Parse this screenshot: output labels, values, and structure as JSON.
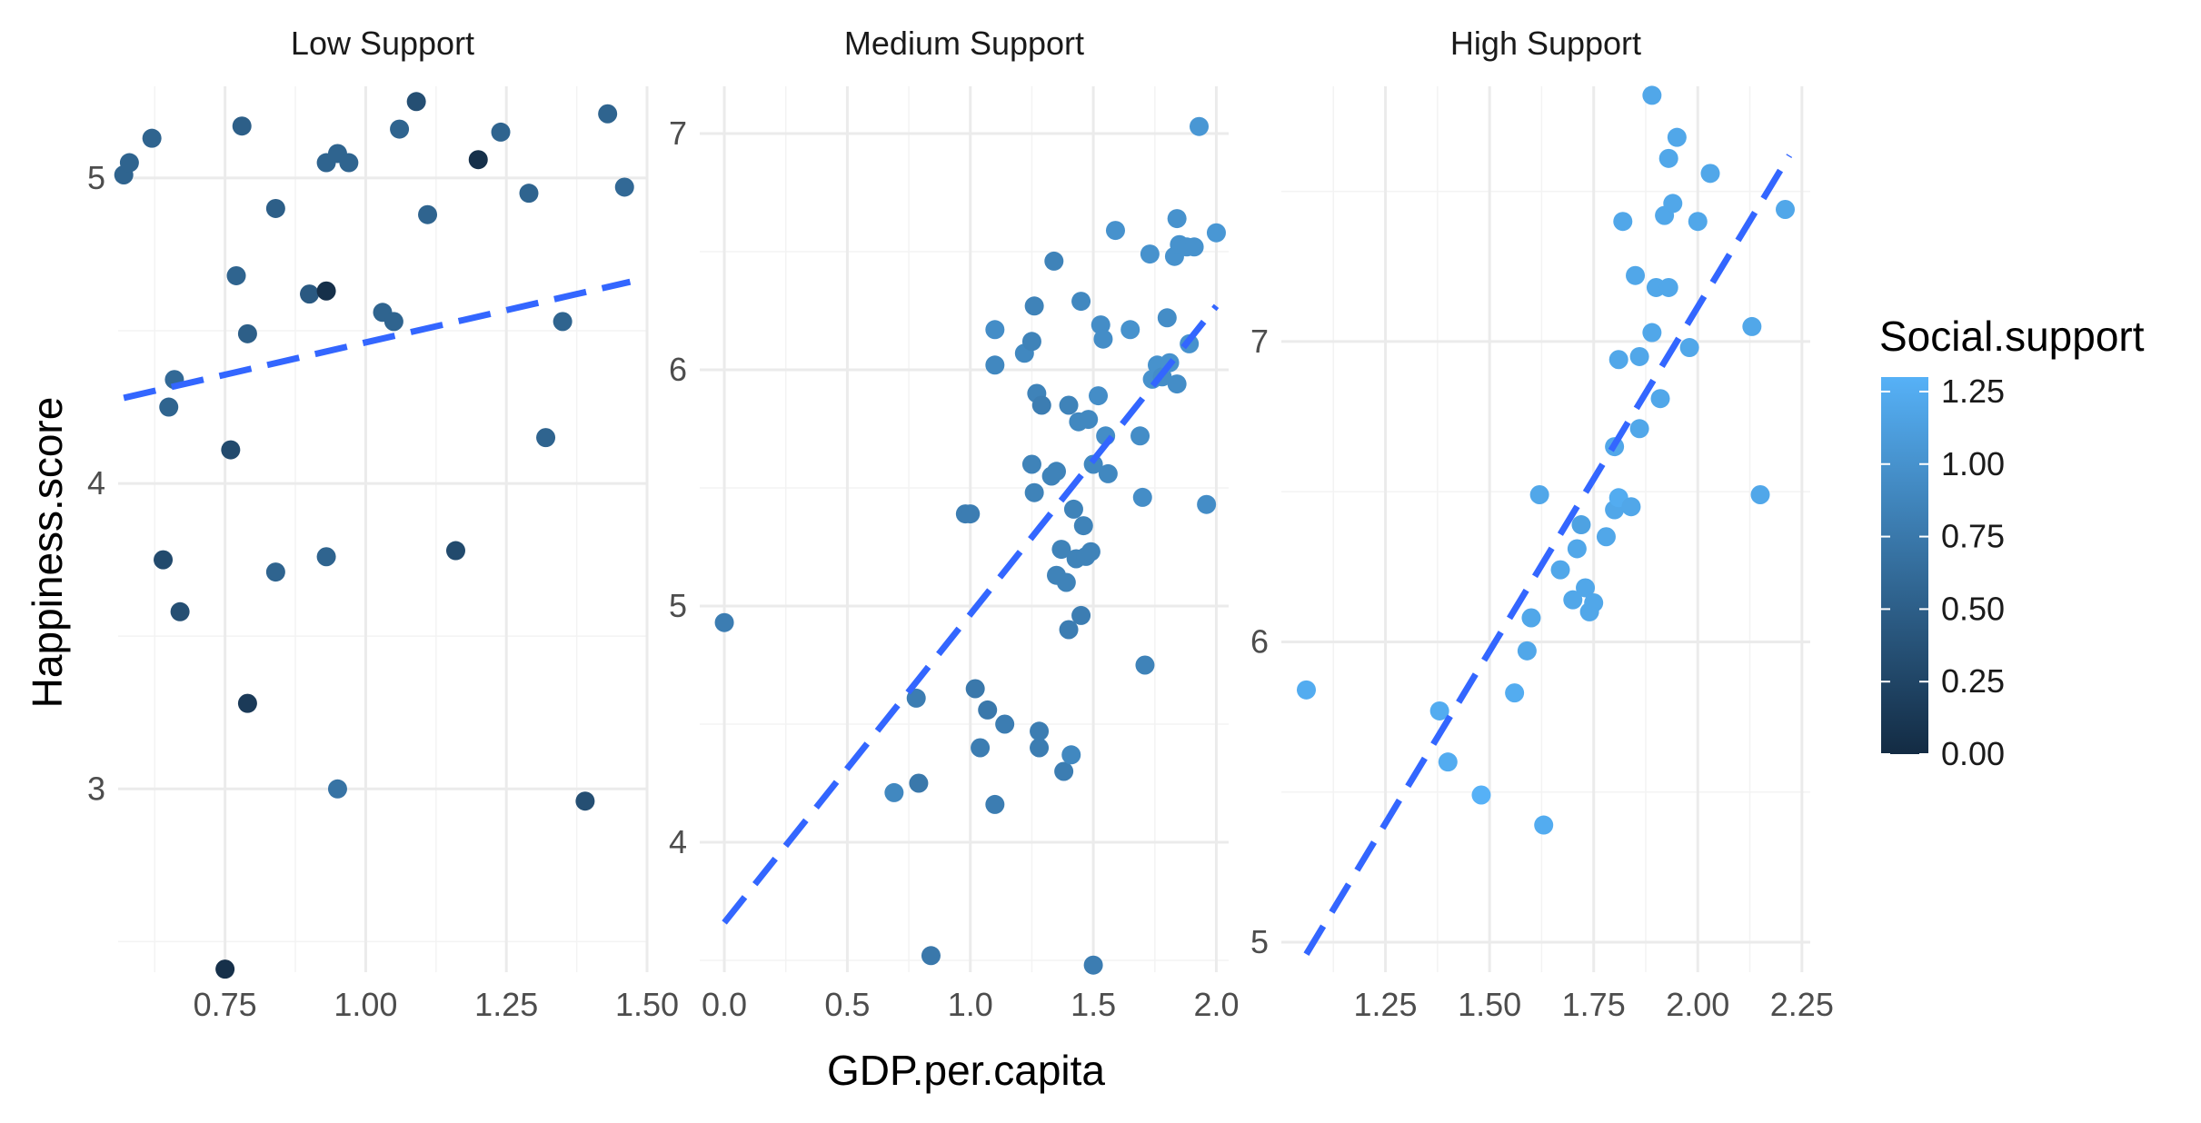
{
  "chart_data": {
    "type": "scatter",
    "xlabel": "GDP.per.capita",
    "ylabel": "Happiness.score",
    "legend": {
      "title": "Social.support",
      "ticks": [
        "1.25",
        "1.00",
        "0.75",
        "0.50",
        "0.25",
        "0.00"
      ],
      "range": [
        0,
        1.3
      ],
      "color_low": "#132b43",
      "color_high": "#56b1f7",
      "placement": "right"
    },
    "trend_color": "#3366ff",
    "panels": [
      {
        "title": "Low Support",
        "xlim": [
          0.56,
          1.5
        ],
        "ylim": [
          2.4,
          5.3
        ],
        "x_ticks": [
          0.75,
          1.0,
          1.25,
          1.5
        ],
        "x_tick_labels": [
          "0.75",
          "1.00",
          "1.25",
          "1.50"
        ],
        "y_ticks": [
          3,
          4,
          5
        ],
        "y_tick_labels": [
          "3",
          "4",
          "5"
        ],
        "trend": {
          "x": [
            0.57,
            1.47
          ],
          "y": [
            4.28,
            4.66
          ]
        },
        "points": [
          {
            "x": 0.57,
            "y": 5.01,
            "s": 0.55
          },
          {
            "x": 0.58,
            "y": 5.05,
            "s": 0.55
          },
          {
            "x": 0.62,
            "y": 5.13,
            "s": 0.55
          },
          {
            "x": 0.65,
            "y": 4.25,
            "s": 0.55
          },
          {
            "x": 0.66,
            "y": 4.34,
            "s": 0.6
          },
          {
            "x": 0.64,
            "y": 3.75,
            "s": 0.3
          },
          {
            "x": 0.67,
            "y": 3.58,
            "s": 0.35
          },
          {
            "x": 0.75,
            "y": 2.41,
            "s": 0.05
          },
          {
            "x": 0.76,
            "y": 4.11,
            "s": 0.3
          },
          {
            "x": 0.77,
            "y": 4.68,
            "s": 0.55
          },
          {
            "x": 0.78,
            "y": 5.17,
            "s": 0.5
          },
          {
            "x": 0.79,
            "y": 4.49,
            "s": 0.5
          },
          {
            "x": 0.79,
            "y": 3.28,
            "s": 0.15
          },
          {
            "x": 0.84,
            "y": 4.9,
            "s": 0.5
          },
          {
            "x": 0.84,
            "y": 3.71,
            "s": 0.55
          },
          {
            "x": 0.9,
            "y": 4.62,
            "s": 0.45
          },
          {
            "x": 0.93,
            "y": 4.63,
            "s": 0.05
          },
          {
            "x": 0.93,
            "y": 5.05,
            "s": 0.55
          },
          {
            "x": 0.95,
            "y": 5.08,
            "s": 0.55
          },
          {
            "x": 0.97,
            "y": 5.05,
            "s": 0.55
          },
          {
            "x": 0.93,
            "y": 3.76,
            "s": 0.55
          },
          {
            "x": 0.95,
            "y": 3.0,
            "s": 0.7
          },
          {
            "x": 1.03,
            "y": 4.56,
            "s": 0.55
          },
          {
            "x": 1.05,
            "y": 4.53,
            "s": 0.55
          },
          {
            "x": 1.06,
            "y": 5.16,
            "s": 0.55
          },
          {
            "x": 1.09,
            "y": 5.25,
            "s": 0.35
          },
          {
            "x": 1.11,
            "y": 4.88,
            "s": 0.55
          },
          {
            "x": 1.16,
            "y": 3.78,
            "s": 0.3
          },
          {
            "x": 1.2,
            "y": 5.06,
            "s": 0.05
          },
          {
            "x": 1.24,
            "y": 5.15,
            "s": 0.55
          },
          {
            "x": 1.29,
            "y": 4.95,
            "s": 0.55
          },
          {
            "x": 1.32,
            "y": 4.15,
            "s": 0.55
          },
          {
            "x": 1.35,
            "y": 4.53,
            "s": 0.55
          },
          {
            "x": 1.39,
            "y": 2.96,
            "s": 0.35
          },
          {
            "x": 1.43,
            "y": 5.21,
            "s": 0.55
          },
          {
            "x": 1.46,
            "y": 4.97,
            "s": 0.6
          }
        ]
      },
      {
        "title": "Medium Support",
        "xlim": [
          -0.1,
          2.05
        ],
        "ylim": [
          3.45,
          7.2
        ],
        "x_ticks": [
          0.0,
          0.5,
          1.0,
          1.5,
          2.0
        ],
        "x_tick_labels": [
          "0.0",
          "0.5",
          "1.0",
          "1.5",
          "2.0"
        ],
        "y_ticks": [
          4,
          5,
          6,
          7
        ],
        "y_tick_labels": [
          "4",
          "5",
          "6",
          "7"
        ],
        "trend": {
          "x": [
            0.0,
            2.0
          ],
          "y": [
            3.66,
            6.27
          ]
        },
        "points": [
          {
            "x": 0.0,
            "y": 4.93,
            "s": 0.8
          },
          {
            "x": 0.69,
            "y": 4.21,
            "s": 0.9
          },
          {
            "x": 0.78,
            "y": 4.61,
            "s": 0.8
          },
          {
            "x": 0.79,
            "y": 4.25,
            "s": 0.75
          },
          {
            "x": 0.84,
            "y": 3.52,
            "s": 0.75
          },
          {
            "x": 0.98,
            "y": 5.39,
            "s": 0.8
          },
          {
            "x": 1.0,
            "y": 5.39,
            "s": 0.8
          },
          {
            "x": 1.02,
            "y": 4.65,
            "s": 0.75
          },
          {
            "x": 1.04,
            "y": 4.4,
            "s": 0.8
          },
          {
            "x": 1.07,
            "y": 4.56,
            "s": 0.75
          },
          {
            "x": 1.1,
            "y": 4.16,
            "s": 0.8
          },
          {
            "x": 1.1,
            "y": 6.02,
            "s": 0.9
          },
          {
            "x": 1.1,
            "y": 6.17,
            "s": 0.95
          },
          {
            "x": 1.14,
            "y": 4.5,
            "s": 0.8
          },
          {
            "x": 1.22,
            "y": 6.07,
            "s": 0.9
          },
          {
            "x": 1.25,
            "y": 6.12,
            "s": 0.85
          },
          {
            "x": 1.26,
            "y": 6.27,
            "s": 0.85
          },
          {
            "x": 1.25,
            "y": 5.6,
            "s": 0.85
          },
          {
            "x": 1.26,
            "y": 5.48,
            "s": 0.85
          },
          {
            "x": 1.27,
            "y": 5.9,
            "s": 0.85
          },
          {
            "x": 1.29,
            "y": 5.85,
            "s": 0.8
          },
          {
            "x": 1.28,
            "y": 4.4,
            "s": 0.8
          },
          {
            "x": 1.28,
            "y": 4.47,
            "s": 0.8
          },
          {
            "x": 1.33,
            "y": 5.55,
            "s": 0.85
          },
          {
            "x": 1.34,
            "y": 6.46,
            "s": 0.85
          },
          {
            "x": 1.35,
            "y": 5.57,
            "s": 0.85
          },
          {
            "x": 1.35,
            "y": 5.13,
            "s": 0.85
          },
          {
            "x": 1.37,
            "y": 5.24,
            "s": 0.85
          },
          {
            "x": 1.38,
            "y": 4.3,
            "s": 0.8
          },
          {
            "x": 1.39,
            "y": 5.1,
            "s": 0.85
          },
          {
            "x": 1.4,
            "y": 5.85,
            "s": 0.85
          },
          {
            "x": 1.4,
            "y": 4.9,
            "s": 0.8
          },
          {
            "x": 1.41,
            "y": 4.37,
            "s": 0.9
          },
          {
            "x": 1.42,
            "y": 5.41,
            "s": 0.85
          },
          {
            "x": 1.43,
            "y": 5.2,
            "s": 0.85
          },
          {
            "x": 1.44,
            "y": 5.78,
            "s": 0.9
          },
          {
            "x": 1.45,
            "y": 4.96,
            "s": 0.8
          },
          {
            "x": 1.45,
            "y": 6.29,
            "s": 0.9
          },
          {
            "x": 1.46,
            "y": 5.34,
            "s": 0.85
          },
          {
            "x": 1.47,
            "y": 5.21,
            "s": 0.85
          },
          {
            "x": 1.48,
            "y": 5.79,
            "s": 0.9
          },
          {
            "x": 1.49,
            "y": 5.23,
            "s": 0.85
          },
          {
            "x": 1.5,
            "y": 3.48,
            "s": 0.8
          },
          {
            "x": 1.5,
            "y": 5.6,
            "s": 0.9
          },
          {
            "x": 1.52,
            "y": 5.89,
            "s": 0.95
          },
          {
            "x": 1.53,
            "y": 6.19,
            "s": 0.95
          },
          {
            "x": 1.54,
            "y": 6.13,
            "s": 0.95
          },
          {
            "x": 1.55,
            "y": 5.72,
            "s": 0.95
          },
          {
            "x": 1.56,
            "y": 5.56,
            "s": 0.9
          },
          {
            "x": 1.59,
            "y": 6.59,
            "s": 1.0
          },
          {
            "x": 1.65,
            "y": 6.17,
            "s": 1.0
          },
          {
            "x": 1.69,
            "y": 5.72,
            "s": 0.95
          },
          {
            "x": 1.7,
            "y": 5.46,
            "s": 0.95
          },
          {
            "x": 1.71,
            "y": 4.75,
            "s": 0.85
          },
          {
            "x": 1.73,
            "y": 6.49,
            "s": 1.0
          },
          {
            "x": 1.74,
            "y": 5.96,
            "s": 1.0
          },
          {
            "x": 1.76,
            "y": 6.02,
            "s": 1.0
          },
          {
            "x": 1.78,
            "y": 5.97,
            "s": 0.95
          },
          {
            "x": 1.8,
            "y": 6.22,
            "s": 0.95
          },
          {
            "x": 1.81,
            "y": 6.03,
            "s": 1.0
          },
          {
            "x": 1.83,
            "y": 6.48,
            "s": 1.0
          },
          {
            "x": 1.84,
            "y": 6.64,
            "s": 1.0
          },
          {
            "x": 1.85,
            "y": 6.53,
            "s": 1.0
          },
          {
            "x": 1.84,
            "y": 5.94,
            "s": 0.95
          },
          {
            "x": 1.88,
            "y": 6.52,
            "s": 1.0
          },
          {
            "x": 1.89,
            "y": 6.11,
            "s": 1.0
          },
          {
            "x": 1.91,
            "y": 6.52,
            "s": 1.0
          },
          {
            "x": 1.93,
            "y": 7.03,
            "s": 1.05
          },
          {
            "x": 1.96,
            "y": 5.43,
            "s": 0.95
          },
          {
            "x": 2.0,
            "y": 6.58,
            "s": 1.05
          }
        ]
      },
      {
        "title": "High Support",
        "xlim": [
          1.0,
          2.27
        ],
        "ylim": [
          4.9,
          7.85
        ],
        "x_ticks": [
          1.25,
          1.5,
          1.75,
          2.0,
          2.25
        ],
        "x_tick_labels": [
          "1.25",
          "1.50",
          "1.75",
          "2.00",
          "2.25"
        ],
        "y_ticks": [
          5,
          6,
          7
        ],
        "y_tick_labels": [
          "5",
          "6",
          "7"
        ],
        "trend": {
          "x": [
            1.06,
            2.22
          ],
          "y": [
            4.96,
            7.62
          ]
        },
        "points": [
          {
            "x": 1.06,
            "y": 5.84,
            "s": 1.25
          },
          {
            "x": 1.38,
            "y": 5.77,
            "s": 1.25
          },
          {
            "x": 1.4,
            "y": 5.6,
            "s": 1.25
          },
          {
            "x": 1.48,
            "y": 5.49,
            "s": 1.3
          },
          {
            "x": 1.56,
            "y": 5.83,
            "s": 1.25
          },
          {
            "x": 1.59,
            "y": 5.97,
            "s": 1.2
          },
          {
            "x": 1.6,
            "y": 6.08,
            "s": 1.2
          },
          {
            "x": 1.62,
            "y": 6.49,
            "s": 1.2
          },
          {
            "x": 1.63,
            "y": 5.39,
            "s": 1.25
          },
          {
            "x": 1.67,
            "y": 6.24,
            "s": 1.2
          },
          {
            "x": 1.7,
            "y": 6.14,
            "s": 1.2
          },
          {
            "x": 1.71,
            "y": 6.31,
            "s": 1.2
          },
          {
            "x": 1.72,
            "y": 6.39,
            "s": 1.15
          },
          {
            "x": 1.73,
            "y": 6.18,
            "s": 1.2
          },
          {
            "x": 1.74,
            "y": 6.1,
            "s": 1.2
          },
          {
            "x": 1.75,
            "y": 6.13,
            "s": 1.2
          },
          {
            "x": 1.78,
            "y": 6.35,
            "s": 1.2
          },
          {
            "x": 1.8,
            "y": 6.44,
            "s": 1.2
          },
          {
            "x": 1.8,
            "y": 6.65,
            "s": 1.2
          },
          {
            "x": 1.81,
            "y": 6.48,
            "s": 1.25
          },
          {
            "x": 1.81,
            "y": 6.94,
            "s": 1.2
          },
          {
            "x": 1.82,
            "y": 7.4,
            "s": 1.2
          },
          {
            "x": 1.84,
            "y": 6.45,
            "s": 1.2
          },
          {
            "x": 1.85,
            "y": 7.22,
            "s": 1.2
          },
          {
            "x": 1.86,
            "y": 6.71,
            "s": 1.2
          },
          {
            "x": 1.86,
            "y": 6.95,
            "s": 1.2
          },
          {
            "x": 1.89,
            "y": 7.03,
            "s": 1.2
          },
          {
            "x": 1.89,
            "y": 7.82,
            "s": 1.2
          },
          {
            "x": 1.9,
            "y": 7.18,
            "s": 1.2
          },
          {
            "x": 1.91,
            "y": 6.81,
            "s": 1.2
          },
          {
            "x": 1.92,
            "y": 7.42,
            "s": 1.2
          },
          {
            "x": 1.93,
            "y": 7.18,
            "s": 1.2
          },
          {
            "x": 1.93,
            "y": 7.61,
            "s": 1.2
          },
          {
            "x": 1.94,
            "y": 7.46,
            "s": 1.2
          },
          {
            "x": 1.95,
            "y": 7.68,
            "s": 1.2
          },
          {
            "x": 1.98,
            "y": 6.98,
            "s": 1.2
          },
          {
            "x": 2.0,
            "y": 7.4,
            "s": 1.2
          },
          {
            "x": 2.03,
            "y": 7.56,
            "s": 1.2
          },
          {
            "x": 2.13,
            "y": 7.05,
            "s": 1.2
          },
          {
            "x": 2.15,
            "y": 6.49,
            "s": 1.2
          },
          {
            "x": 2.21,
            "y": 7.44,
            "s": 1.2
          }
        ]
      }
    ]
  }
}
